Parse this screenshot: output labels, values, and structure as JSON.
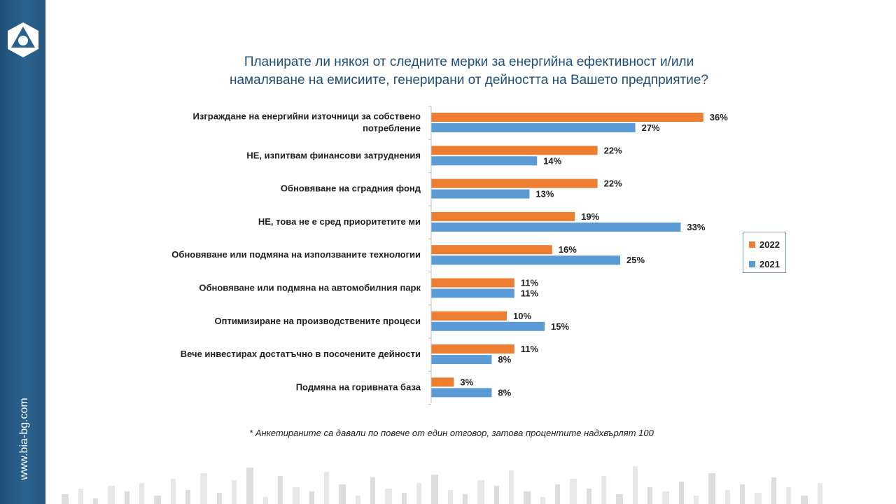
{
  "sidebar": {
    "site_url": "www.bia-bg.com",
    "logo_icon": "bia-logo-icon"
  },
  "colors": {
    "sidebar": "#27597f",
    "title": "#1f4e79",
    "series_2022": "#ed7d31",
    "series_2021": "#5b9bd5"
  },
  "chart_data": {
    "type": "bar",
    "orientation": "horizontal",
    "title_line1": "Планирате ли някоя от следните мерки за енергийна ефективност и/или",
    "title_line2": "намаляване на емисиите, генерирани от дейността на Вашето предприятие?",
    "categories": [
      [
        "Изграждане на енергийни източници за собствено",
        "потребление"
      ],
      [
        "НЕ, изпитвам финансови затруднения"
      ],
      [
        "Обновяване на сградния фонд"
      ],
      [
        "НЕ, това не е сред приоритетите ми"
      ],
      [
        "Обновяване или подмяна на използваните технологии"
      ],
      [
        "Обновяване или подмяна на автомобилния парк"
      ],
      [
        "Оптимизиране на производствените процеси"
      ],
      [
        "Вече инвестирах достатъчно в посочените дейности"
      ],
      [
        "Подмяна на горивната база"
      ]
    ],
    "series": [
      {
        "name": "2022",
        "values": [
          36,
          22,
          22,
          19,
          16,
          11,
          10,
          11,
          3
        ],
        "labels": [
          "36%",
          "22%",
          "22%",
          "19%",
          "16%",
          "11%",
          "10%",
          "11%",
          "3%"
        ]
      },
      {
        "name": "2021",
        "values": [
          27,
          14,
          13,
          33,
          25,
          11,
          15,
          8,
          8
        ],
        "labels": [
          "27%",
          "14%",
          "13%",
          "33%",
          "25%",
          "11%",
          "15%",
          "8%",
          "8%"
        ]
      }
    ],
    "xlim": [
      0,
      40
    ],
    "legend_position": "right"
  },
  "legend": {
    "label_2022": "2022",
    "label_2021": "2021"
  },
  "footnote": "* Анкетираните са давали по повече от един отговор, затова процентите надхвърлят 100"
}
